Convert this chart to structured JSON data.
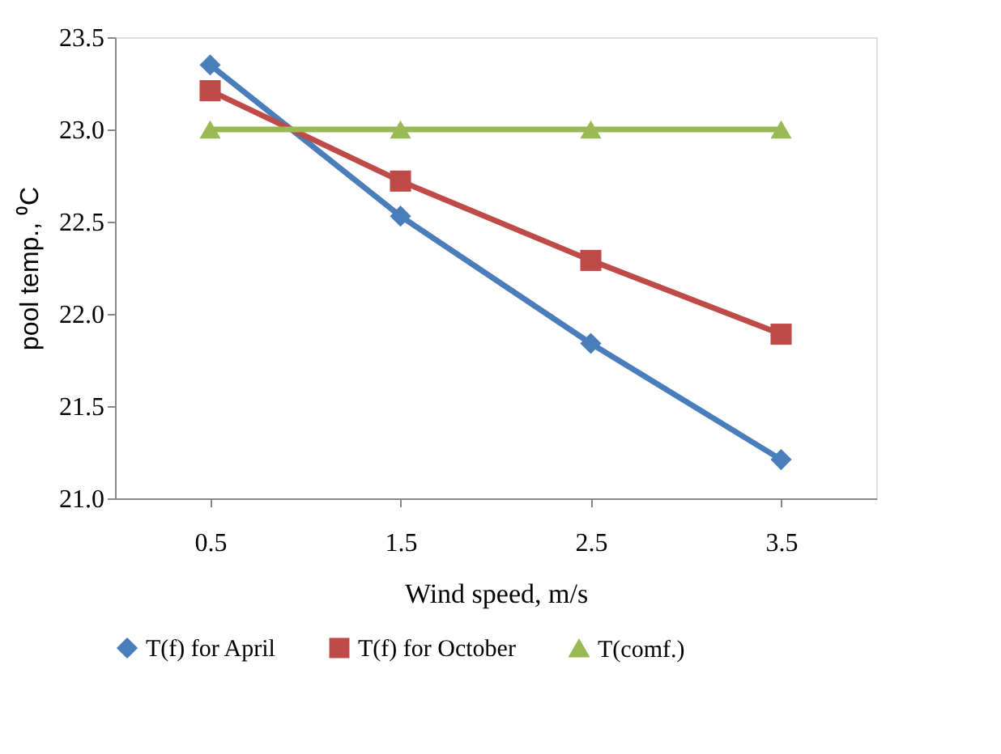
{
  "chart_data": {
    "type": "line",
    "xlabel": "Wind speed, m/s",
    "ylabel": "pool temp., ⁰C",
    "categories": [
      "0.5",
      "1.5",
      "2.5",
      "3.5"
    ],
    "series": [
      {
        "name": "T(f) for April",
        "color": "#4a7ebb",
        "marker": "diamond",
        "values": [
          23.35,
          22.53,
          21.84,
          21.21
        ]
      },
      {
        "name": "T(f) for October",
        "color": "#be4b48",
        "marker": "square",
        "values": [
          23.21,
          22.72,
          22.29,
          21.89
        ]
      },
      {
        "name": "T(comf.)",
        "color": "#98b954",
        "marker": "triangle",
        "values": [
          23.0,
          23.0,
          23.0,
          23.0
        ]
      }
    ],
    "ylim": [
      21.0,
      23.5
    ],
    "yticks": [
      {
        "value": 21,
        "label": "21.0"
      },
      21.5,
      {
        "value": 22,
        "label": "22.0"
      },
      22.5,
      {
        "value": 23,
        "label": "23.0"
      },
      23.5
    ],
    "grid": false,
    "legend": "bottom",
    "line_style": "solid"
  }
}
